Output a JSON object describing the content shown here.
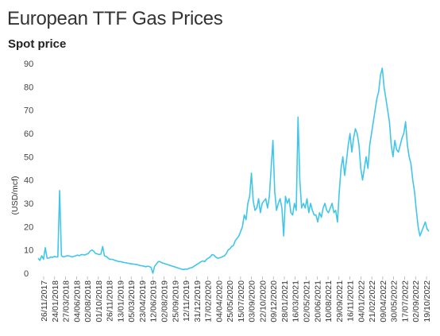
{
  "title": "European TTF Gas Prices",
  "subtitle": "Spot price",
  "chart_data": {
    "type": "line",
    "title": "European TTF Gas Prices",
    "subtitle": "Spot price",
    "ylabel": "(USD/mcf)",
    "xlabel": "",
    "ylim": [
      0,
      90
    ],
    "yticks": [
      0,
      10,
      20,
      30,
      40,
      50,
      60,
      70,
      80,
      90
    ],
    "grid": false,
    "color": "#41c6ea",
    "x_tick_labels": [
      "26/11/2017",
      "24/01/2018",
      "27/03/2018",
      "04/06/2018",
      "02/08/2018",
      "01/10/2018",
      "26/11/2018",
      "13/01/2019",
      "05/03/2019",
      "23/04/2019",
      "12/06/2019",
      "02/08/2019",
      "25/09/2019",
      "12/11/2019",
      "31/12/2019",
      "17/02/2020",
      "04/04/2020",
      "25/05/2020",
      "15/07/2020",
      "03/09/2020",
      "22/10/2020",
      "09/12/2020",
      "28/01/2021",
      "16/03/2021",
      "02/05/2021",
      "20/06/2021",
      "10/08/2021",
      "29/09/2021",
      "16/11/2021",
      "04/01/2022",
      "21/02/2022",
      "09/04/2022",
      "30/05/2022",
      "17/07/2022",
      "02/09/2022",
      "19/10/2022"
    ],
    "series": [
      {
        "values": [
          6.5,
          5.5,
          7.5,
          6,
          11,
          6.5,
          6.5,
          7,
          6.8,
          7.2,
          7,
          7,
          35.5,
          7.5,
          7,
          7.2,
          7.5,
          7.5,
          7.3,
          7,
          7.3,
          7.5,
          7.8,
          7.5,
          8,
          8,
          7.8,
          8.2,
          8.5,
          9.5,
          10,
          9.5,
          8.5,
          8.3,
          8,
          8.2,
          11.5,
          7.5,
          7.2,
          6.5,
          6,
          6,
          5.8,
          5.5,
          5.3,
          5,
          5,
          4.8,
          4.6,
          4.5,
          4.3,
          4.2,
          4,
          4,
          3.8,
          3.8,
          3.5,
          3.3,
          3.2,
          3,
          2.8,
          3,
          2.9,
          2.5,
          0,
          3,
          4,
          5,
          5,
          4.5,
          4.3,
          4,
          3.8,
          3.5,
          3.3,
          3,
          2.8,
          2.5,
          2.3,
          2,
          1.8,
          1.6,
          1.8,
          1.7,
          2,
          2.3,
          2.5,
          3,
          3.5,
          4,
          4.5,
          5,
          5.3,
          5,
          6,
          6.5,
          7,
          8,
          7.8,
          7,
          6.5,
          6.5,
          6.8,
          7.2,
          7.5,
          8.5,
          10,
          10.5,
          11.5,
          12,
          14,
          15,
          16,
          18,
          20,
          25,
          23,
          30,
          33,
          43,
          31,
          27,
          28,
          32,
          26,
          30,
          31,
          32,
          28,
          33,
          45,
          57,
          35,
          27,
          30,
          32,
          28,
          16,
          33,
          30,
          32,
          26,
          25,
          30,
          27,
          67,
          40,
          28,
          30,
          28,
          32,
          26,
          30,
          27,
          25,
          25,
          22,
          26,
          24,
          28,
          30,
          27,
          26,
          28,
          30,
          26,
          27,
          22,
          35,
          45,
          50,
          42,
          48,
          55,
          60,
          52,
          58,
          62,
          60,
          55,
          45,
          40,
          45,
          50,
          45,
          55,
          60,
          65,
          70,
          75,
          78,
          85,
          88,
          80,
          75,
          70,
          65,
          55,
          50,
          57,
          53,
          52,
          55,
          58,
          60,
          65,
          55,
          50,
          47,
          40,
          35,
          27,
          20,
          16,
          18,
          20,
          22,
          19,
          18
        ]
      }
    ]
  }
}
